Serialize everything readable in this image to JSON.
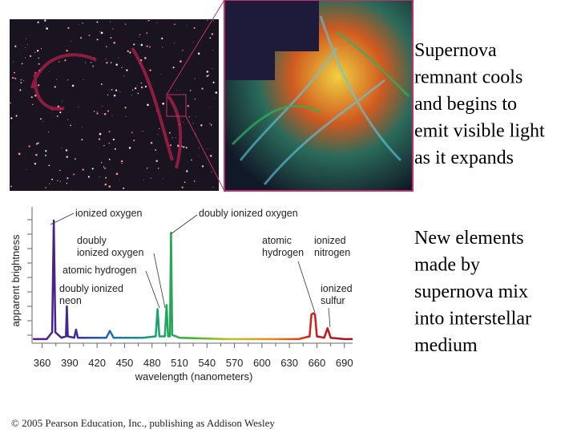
{
  "text_blocks": [
    {
      "lines": [
        "Supernova",
        "remnant cools",
        "and begins to",
        "emit visible light",
        "as it expands"
      ]
    },
    {
      "lines": [
        "New elements",
        "made by",
        "supernova mix",
        "into interstellar",
        "medium"
      ]
    }
  ],
  "copyright": "© 2005 Pearson Education, Inc., publishing as Addison Wesley",
  "chart_data": {
    "type": "line",
    "x_label": "wavelength (nanometers)",
    "y_label": "apparent brightness",
    "xlim": [
      349,
      699
    ],
    "xticks": [
      360,
      390,
      420,
      450,
      480,
      510,
      540,
      570,
      600,
      630,
      660,
      690
    ],
    "ylim": [
      0,
      10
    ],
    "line_colors": [
      "#5b1a7a",
      "#3a2a9a",
      "#1f6fb0",
      "#12a07a",
      "#3cb030",
      "#c8c020",
      "#e88a18",
      "#d41a1a",
      "#a0102a"
    ],
    "x": [
      350,
      365,
      371,
      372.7,
      374.5,
      381,
      386,
      387,
      388,
      395,
      397,
      399,
      430,
      434,
      438,
      470,
      484,
      486,
      488,
      494,
      495.9,
      497.5,
      499.5,
      500.7,
      502,
      510,
      560,
      600,
      640,
      652,
      654,
      656.3,
      658,
      660,
      668,
      671.6,
      675,
      690,
      699
    ],
    "values": [
      0.3,
      0.3,
      0.8,
      9,
      0.8,
      0.4,
      0.5,
      2.7,
      0.5,
      0.4,
      1,
      0.4,
      0.4,
      0.9,
      0.4,
      0.4,
      0.5,
      2.5,
      0.5,
      0.5,
      2.8,
      0.5,
      0.5,
      8.1,
      0.6,
      0.4,
      0.3,
      0.3,
      0.3,
      0.5,
      2.1,
      2.2,
      2.1,
      0.5,
      0.4,
      1.1,
      0.4,
      0.3,
      0.3
    ],
    "annotations": [
      {
        "lines": [
          "ionized oxygen"
        ]
      },
      {
        "lines": [
          "doubly ionized oxygen"
        ]
      },
      {
        "lines": [
          "doubly",
          "ionized oxygen"
        ]
      },
      {
        "lines": [
          "atomic hydrogen"
        ]
      },
      {
        "lines": [
          "doubly ionized",
          "neon"
        ]
      },
      {
        "lines": [
          "atomic",
          "hydrogen"
        ]
      },
      {
        "lines": [
          "ionized",
          "nitrogen"
        ]
      },
      {
        "lines": [
          "ionized",
          "sulfur"
        ]
      }
    ]
  }
}
